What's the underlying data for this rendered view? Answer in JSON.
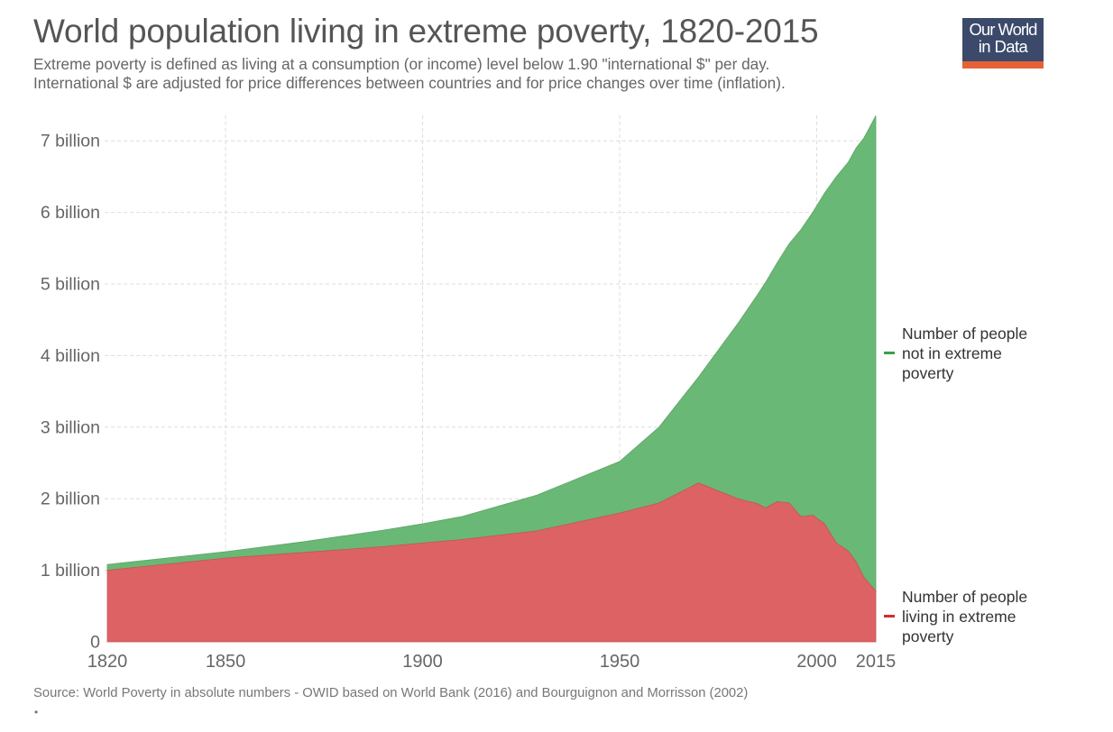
{
  "header": {
    "title": "World population living in extreme poverty, 1820-2015",
    "subtitle_line1": "Extreme poverty is defined as living at a consumption (or income) level below 1.90 \"international $\" per day.",
    "subtitle_line2": "International $ are adjusted for price differences between countries and for price changes over time (inflation).",
    "logo_line1": "Our World",
    "logo_line2": "in Data"
  },
  "colors": {
    "not_poor": "#6ab875",
    "poor": "#dd6264",
    "not_poor_legend": "#3aa04a",
    "poor_legend": "#d42b2e",
    "logo_bg": "#3b4a6b",
    "logo_bar": "#e56236"
  },
  "footer": {
    "source": "Source: World Poverty in absolute numbers - OWID based on World Bank (2016) and Bourguignon and Morrisson (2002)",
    "bullet": "•"
  },
  "chart_data": {
    "type": "area",
    "stacked": true,
    "title": "World population living in extreme poverty, 1820-2015",
    "xlabel": "",
    "ylabel": "",
    "xlim": [
      1820,
      2015
    ],
    "ylim": [
      0,
      7.35
    ],
    "unit": "billion",
    "grid": true,
    "x_ticks": [
      1820,
      1850,
      1900,
      1950,
      2000,
      2015
    ],
    "y_ticks": [
      0,
      1,
      2,
      3,
      4,
      5,
      6,
      7
    ],
    "y_tick_labels": [
      "0",
      "1 billion",
      "2 billion",
      "3 billion",
      "4 billion",
      "5 billion",
      "6 billion",
      "7 billion"
    ],
    "legend_position": "right",
    "x": [
      1820,
      1850,
      1870,
      1890,
      1900,
      1910,
      1929,
      1950,
      1960,
      1970,
      1980,
      1985,
      1987,
      1990,
      1993,
      1996,
      1999,
      2002,
      2005,
      2008,
      2010,
      2012,
      2015
    ],
    "series": [
      {
        "name": "Number of people living in extreme poverty",
        "values": [
          1.0,
          1.17,
          1.25,
          1.33,
          1.38,
          1.43,
          1.55,
          1.8,
          1.94,
          2.22,
          2.0,
          1.93,
          1.87,
          1.96,
          1.94,
          1.75,
          1.77,
          1.65,
          1.38,
          1.27,
          1.12,
          0.9,
          0.71
        ]
      },
      {
        "name": "Number of people not in extreme poverty",
        "values": [
          0.08,
          0.09,
          0.15,
          0.23,
          0.27,
          0.32,
          0.5,
          0.72,
          1.06,
          1.48,
          2.45,
          2.92,
          3.15,
          3.34,
          3.62,
          4.01,
          4.23,
          4.62,
          5.12,
          5.43,
          5.78,
          6.14,
          6.64
        ]
      }
    ]
  },
  "legend": [
    {
      "name": "Number of people not in extreme poverty",
      "lines": [
        "Number of people",
        "not in extreme",
        "poverty"
      ]
    },
    {
      "name": "Number of people living in extreme poverty",
      "lines": [
        "Number of people",
        "living in extreme",
        "poverty"
      ]
    }
  ]
}
